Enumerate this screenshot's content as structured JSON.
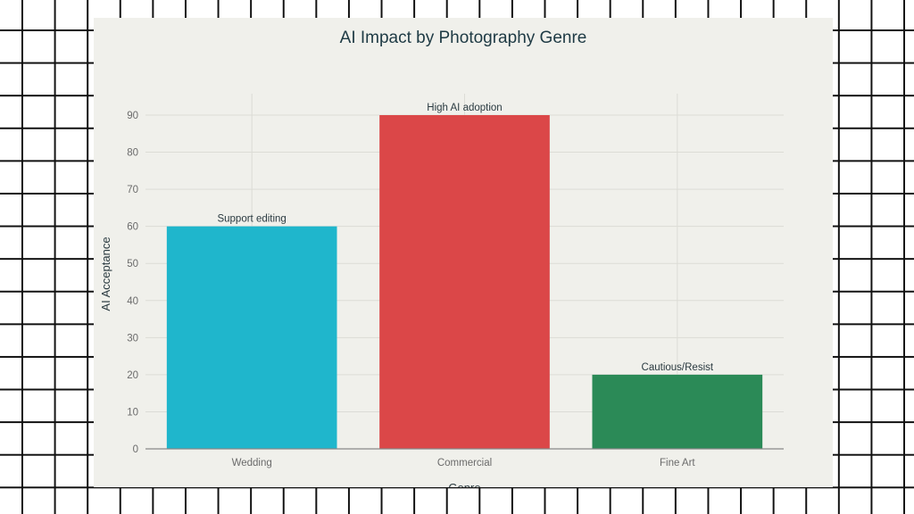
{
  "chart_data": {
    "type": "bar",
    "title": "AI Impact by Photography Genre",
    "xlabel": "Genre",
    "ylabel": "AI Acceptance",
    "categories": [
      "Wedding",
      "Commercial",
      "Fine Art"
    ],
    "values": [
      60,
      90,
      20
    ],
    "annotations": [
      "Support editing",
      "High AI adoption",
      "Cautious/Resist"
    ],
    "colors": [
      "#1fb6cc",
      "#db4748",
      "#2b8a57"
    ],
    "yticks": [
      0,
      10,
      20,
      30,
      40,
      50,
      60,
      70,
      80,
      90
    ],
    "ylim": [
      0,
      90
    ],
    "grid": true,
    "legend": "none"
  }
}
